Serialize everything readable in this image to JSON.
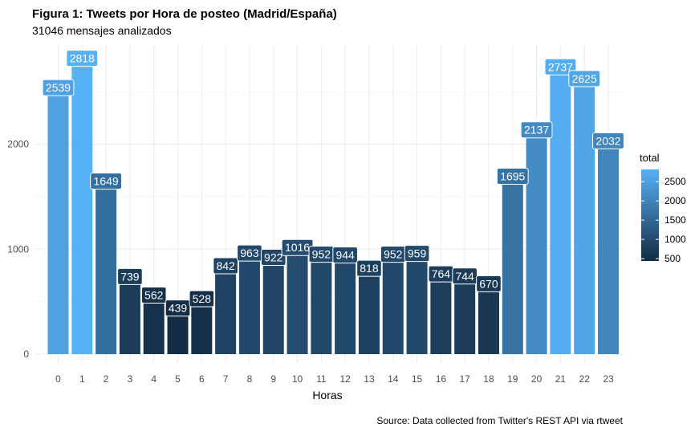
{
  "chart_data": {
    "type": "bar",
    "title": "Figura 1: Tweets por Hora de posteo (Madrid/España)",
    "subtitle": "31046 mensajes analizados",
    "xlabel": "Horas",
    "ylabel": "",
    "caption": "Source: Data collected from Twitter's REST API via rtweet",
    "categories": [
      "0",
      "1",
      "2",
      "3",
      "4",
      "5",
      "6",
      "7",
      "8",
      "9",
      "10",
      "11",
      "12",
      "13",
      "14",
      "15",
      "16",
      "17",
      "18",
      "19",
      "20",
      "21",
      "22",
      "23"
    ],
    "values": [
      2539,
      2818,
      1649,
      739,
      562,
      439,
      528,
      842,
      963,
      922,
      1016,
      952,
      944,
      818,
      952,
      959,
      764,
      744,
      670,
      1695,
      2137,
      2737,
      2625,
      2032
    ],
    "ylim": [
      0,
      3000
    ],
    "yticks": [
      0,
      1000,
      2000
    ],
    "grid": true,
    "legend": {
      "title": "total",
      "placement": "right",
      "ticks": [
        500,
        1000,
        1500,
        2000,
        2500
      ],
      "color_low": "#132B43",
      "color_high": "#56B1F7",
      "range": [
        439,
        2818
      ]
    }
  }
}
